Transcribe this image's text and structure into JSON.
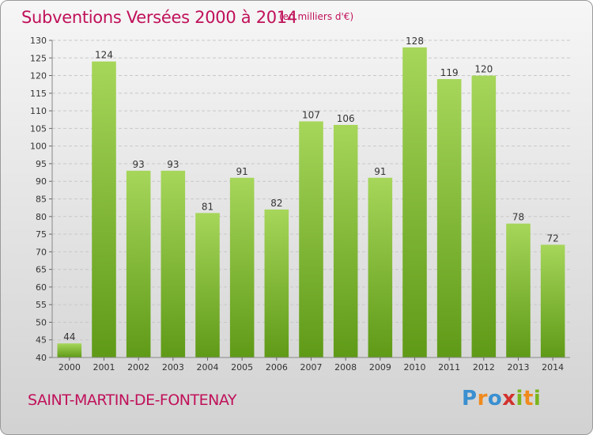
{
  "header": {
    "title": "Subventions Versées 2000 à 2014",
    "unit": "(en milliers d'€)"
  },
  "footer": {
    "commune": "SAINT-MARTIN-DE-FONTENAY",
    "logo_text": "Proxiti"
  },
  "colors": {
    "title": "#c0115a",
    "bar_light": "#a6d65a",
    "bar_dark": "#5f9a17",
    "grid": "#cfcfcf",
    "axis_text": "#333333"
  },
  "chart_data": {
    "type": "bar",
    "categories": [
      "2000",
      "2001",
      "2002",
      "2003",
      "2004",
      "2005",
      "2006",
      "2007",
      "2008",
      "2009",
      "2010",
      "2011",
      "2012",
      "2013",
      "2014"
    ],
    "values": [
      44,
      124,
      93,
      93,
      81,
      91,
      82,
      107,
      106,
      91,
      128,
      119,
      120,
      78,
      72
    ],
    "title": "Subventions Versées 2000 à 2014",
    "ylim": [
      40,
      130
    ],
    "ytick_step": 5,
    "grid": "horizontal-dashed",
    "data_labels": true
  }
}
